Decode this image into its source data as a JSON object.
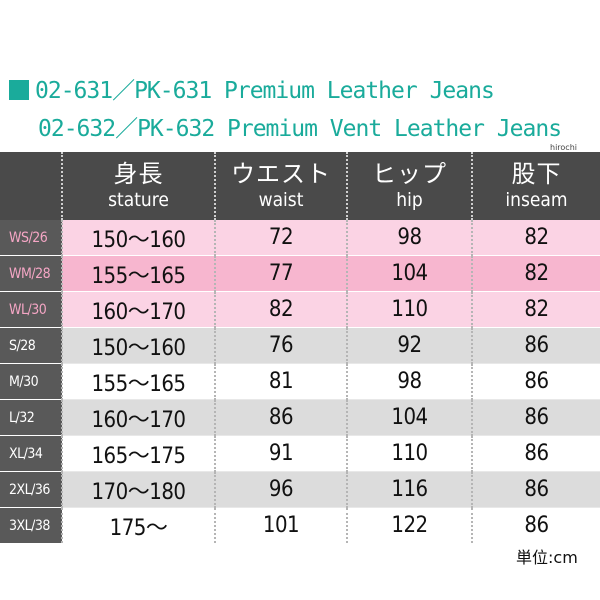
{
  "title_line1": "02-631／PK-631 Premium Leather Jeans",
  "title_line2": "02-632／PK-632 Premium Vent Leather Jeans",
  "watermark": "hirochi",
  "colors": {
    "accent": "#1aab9b",
    "header_bg": "#4a4a4a",
    "pink": "#fbd3e4",
    "pink_dark": "#f7b6cf",
    "gray_row": "#dcdcdc"
  },
  "headers": [
    {
      "jp": "身長",
      "en": "stature"
    },
    {
      "jp": "ウエスト",
      "en": "waist"
    },
    {
      "jp": "ヒップ",
      "en": "hip"
    },
    {
      "jp": "股下",
      "en": "inseam"
    }
  ],
  "rows": [
    {
      "size": "WS/26",
      "stature": "150～160",
      "waist": "72",
      "hip": "98",
      "inseam": "82"
    },
    {
      "size": "WM/28",
      "stature": "155～165",
      "waist": "77",
      "hip": "104",
      "inseam": "82"
    },
    {
      "size": "WL/30",
      "stature": "160～170",
      "waist": "82",
      "hip": "110",
      "inseam": "82"
    },
    {
      "size": "S/28",
      "stature": "150～160",
      "waist": "76",
      "hip": "92",
      "inseam": "86"
    },
    {
      "size": "M/30",
      "stature": "155～165",
      "waist": "81",
      "hip": "98",
      "inseam": "86"
    },
    {
      "size": "L/32",
      "stature": "160～170",
      "waist": "86",
      "hip": "104",
      "inseam": "86"
    },
    {
      "size": "XL/34",
      "stature": "165～175",
      "waist": "91",
      "hip": "110",
      "inseam": "86"
    },
    {
      "size": "2XL/36",
      "stature": "170～180",
      "waist": "96",
      "hip": "116",
      "inseam": "86"
    },
    {
      "size": "3XL/38",
      "stature": "175～",
      "waist": "101",
      "hip": "122",
      "inseam": "86"
    }
  ],
  "unit": "単位:cm"
}
